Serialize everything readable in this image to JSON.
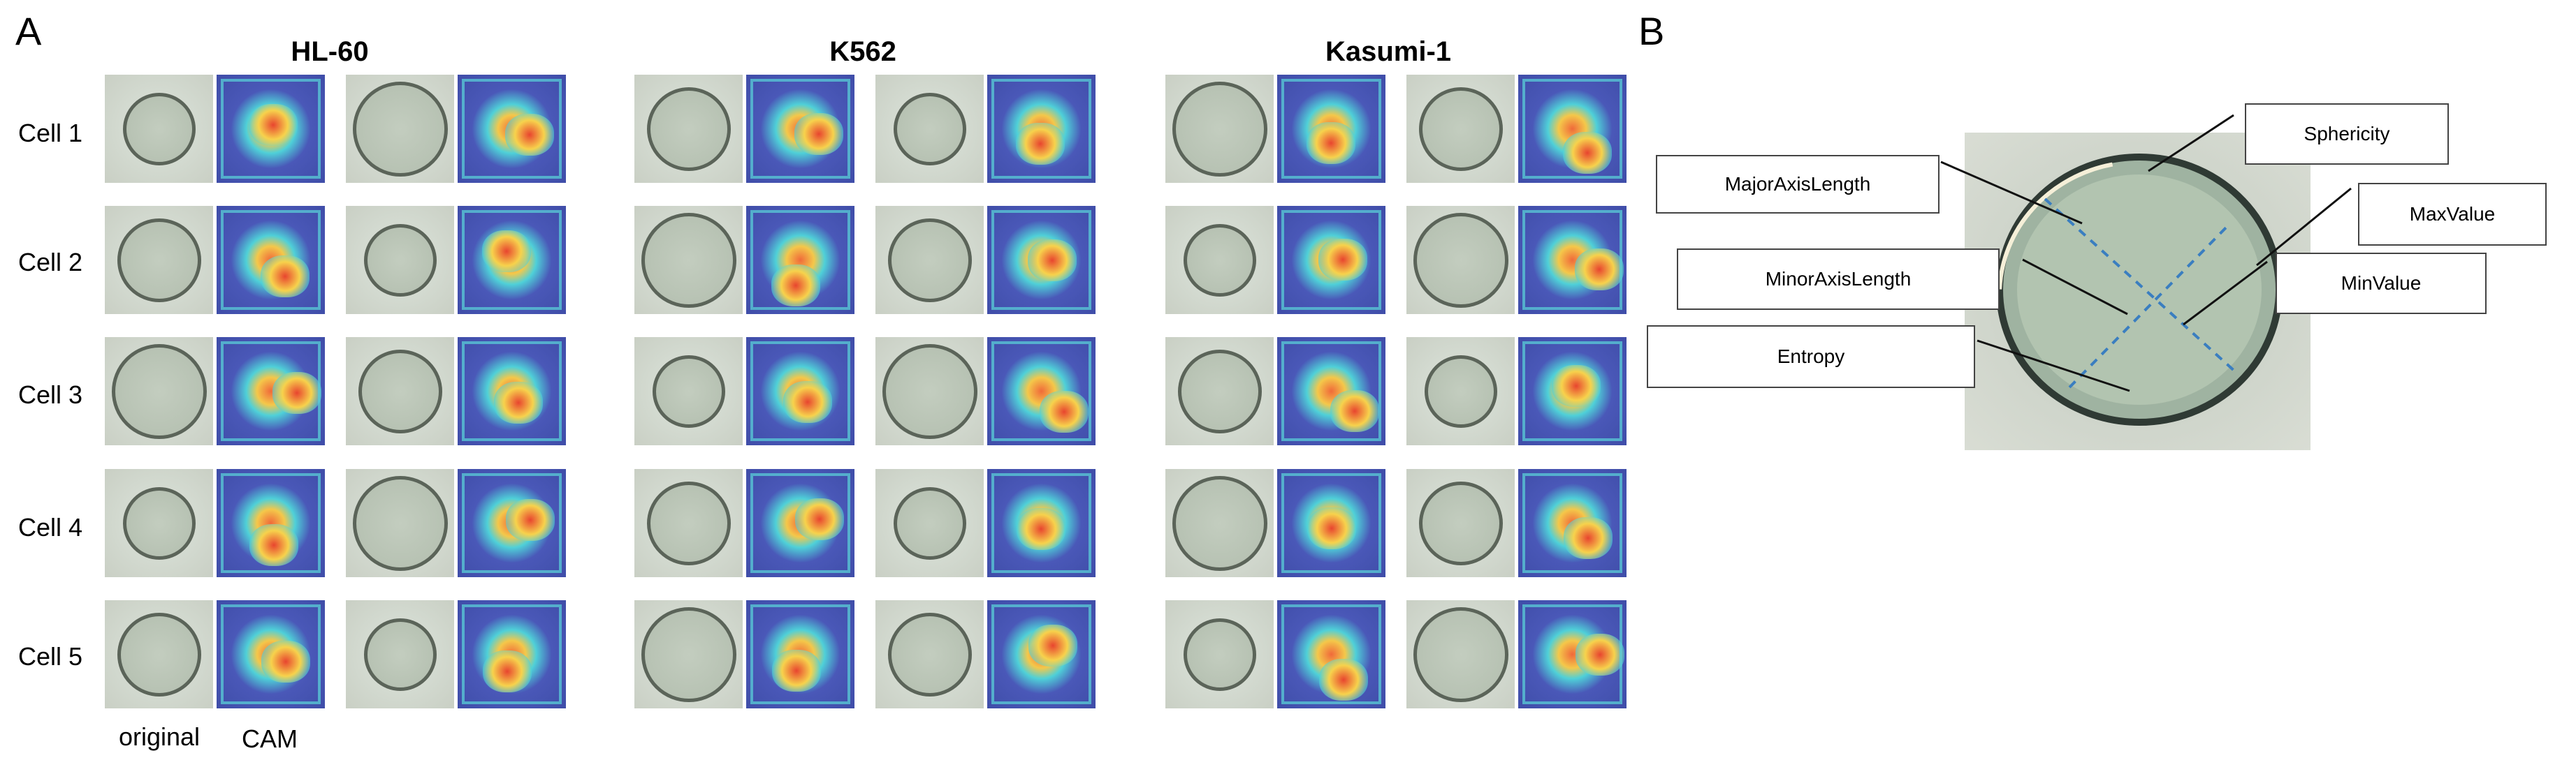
{
  "panel_a": {
    "letter": "A",
    "groups": [
      {
        "title": "HL-60"
      },
      {
        "title": "K562"
      },
      {
        "title": "Kasumi-1"
      }
    ],
    "rows": [
      "Cell 1",
      "Cell 2",
      "Cell 3",
      "Cell 4",
      "Cell 5"
    ],
    "captions": {
      "original": "original",
      "cam": "CAM"
    }
  },
  "panel_b": {
    "letter": "B",
    "features": [
      "Sphericity",
      "MajorAxisLength",
      "MaxValue",
      "MinorAxisLength",
      "MinValue",
      "Entropy"
    ]
  },
  "colors": {
    "cam_low": "#3f4da8",
    "cam_mid": "#4fd0d8",
    "cam_high": "#f06a3a",
    "original_bg": "#d2d9cf",
    "dashed_axis": "#3a7ec0"
  }
}
